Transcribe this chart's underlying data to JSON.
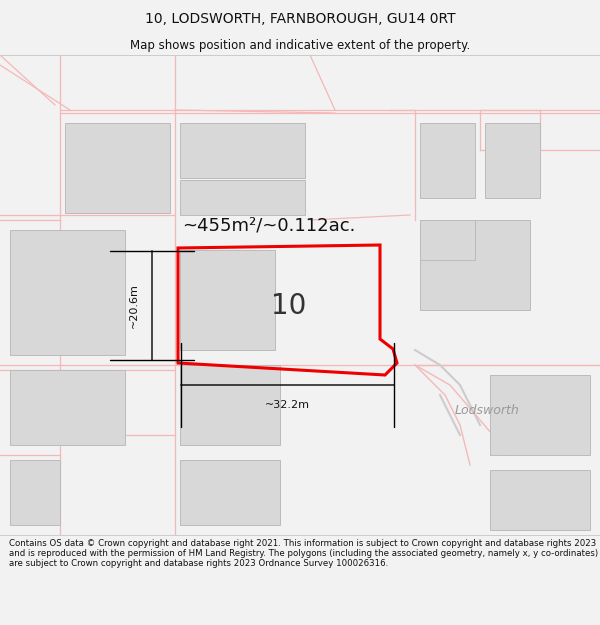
{
  "title_line1": "10, LODSWORTH, FARNBOROUGH, GU14 0RT",
  "title_line2": "Map shows position and indicative extent of the property.",
  "area_label": "~455m²/~0.112ac.",
  "width_label": "~32.2m",
  "height_label": "~20.6m",
  "number_label": "10",
  "lodsworth_label": "Lodsworth",
  "footer_text": "Contains OS data © Crown copyright and database right 2021. This information is subject to Crown copyright and database rights 2023 and is reproduced with the permission of HM Land Registry. The polygons (including the associated geometry, namely x, y co-ordinates) are subject to Crown copyright and database rights 2023 Ordnance Survey 100026316.",
  "bg_color": "#f2f2f2",
  "map_bg": "#ffffff",
  "red_color": "#ee0000",
  "road_color": "#f5b8b8",
  "road_color2": "#cccccc",
  "gray_fill": "#d8d8d8",
  "gray_border": "#bbbbbb",
  "footer_bg": "#ffffff",
  "title_fs": 10,
  "subtitle_fs": 8.5,
  "area_fs": 13,
  "number_fs": 20,
  "dim_fs": 8,
  "lodsworth_fs": 9,
  "footer_fs": 6.2
}
